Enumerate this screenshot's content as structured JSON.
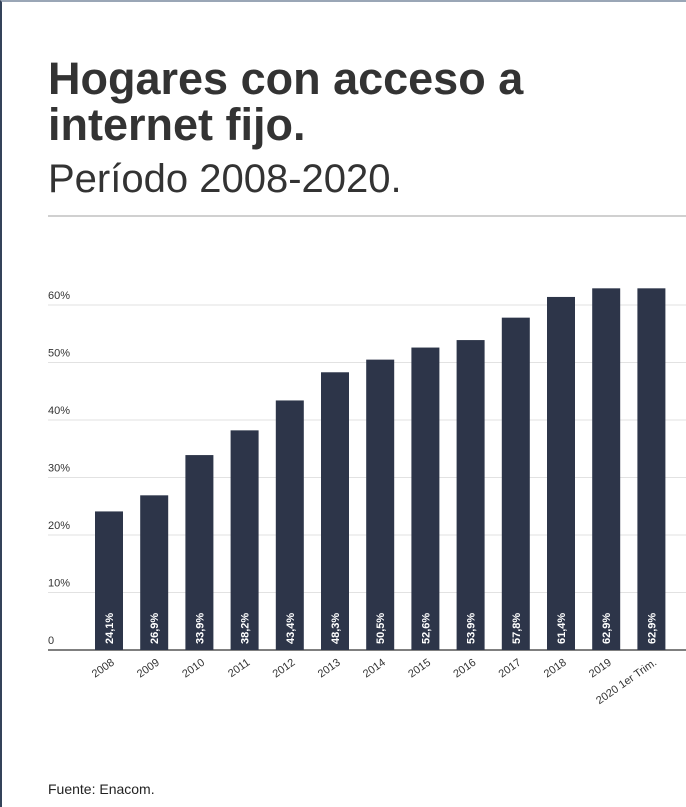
{
  "header": {
    "title": "Hogares con acceso a internet fijo.",
    "subtitle": "Período 2008-2020."
  },
  "footer": {
    "source": "Fuente: Enacom."
  },
  "colors": {
    "bar": "#2d3549",
    "grid": "#e2e2e2",
    "axis": "#555555",
    "text": "#333333",
    "label": "#ffffff"
  },
  "chart_data": {
    "type": "bar",
    "title": "Hogares con acceso a internet fijo.",
    "subtitle": "Período 2008-2020.",
    "categories": [
      "2008",
      "2009",
      "2010",
      "2011",
      "2012",
      "2013",
      "2014",
      "2015",
      "2016",
      "2017",
      "2018",
      "2019",
      "2020 1er Trim."
    ],
    "values": [
      24.1,
      26.9,
      33.9,
      38.2,
      43.4,
      48.3,
      50.5,
      52.6,
      53.9,
      57.8,
      61.4,
      62.9,
      62.9
    ],
    "value_labels": [
      "24,1%",
      "26,9%",
      "33,9%",
      "38,2%",
      "43,4%",
      "48,3%",
      "50,5%",
      "52,6%",
      "53,9%",
      "57,8%",
      "61,4%",
      "62,9%",
      "62,9%"
    ],
    "yticks": [
      0,
      10,
      20,
      30,
      40,
      50,
      60
    ],
    "ytick_labels": [
      "0",
      "10%",
      "20%",
      "30%",
      "40%",
      "50%",
      "60%"
    ],
    "ylim": [
      0,
      60
    ],
    "xlabel": "",
    "ylabel": "",
    "grid": true,
    "legend": "none"
  }
}
